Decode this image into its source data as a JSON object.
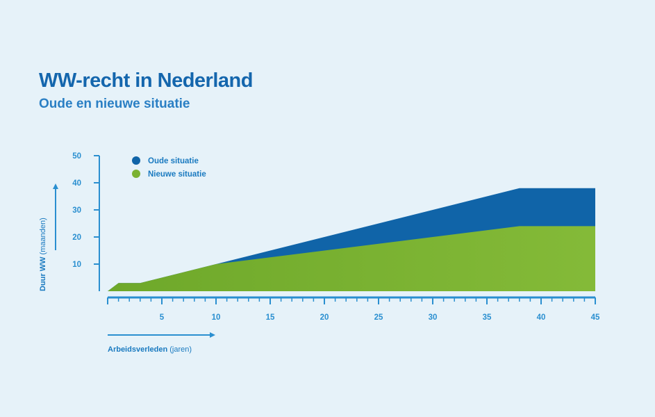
{
  "header": {
    "title": "WW-recht in Nederland",
    "subtitle": "Oude en nieuwe situatie"
  },
  "colors": {
    "background": "#e6f2f9",
    "title": "#1466ad",
    "oude": "#1064a8",
    "nieuwe_start": "#6ea82a",
    "nieuwe_end": "#84ba38",
    "axis": "#2a8fd0"
  },
  "chart_data": {
    "type": "area",
    "title": "WW-recht in Nederland",
    "subtitle": "Oude en nieuwe situatie",
    "xlabel_bold": "Arbeidsverleden",
    "xlabel_rest": " (jaren)",
    "ylabel_bold": "Duur WW",
    "ylabel_rest": " (maanden)",
    "xlim": [
      0,
      45
    ],
    "ylim": [
      0,
      50
    ],
    "x_ticks": [
      5,
      10,
      15,
      20,
      25,
      30,
      35,
      40,
      45
    ],
    "y_ticks": [
      10,
      20,
      30,
      40,
      50
    ],
    "legend_position": "top-left",
    "series": [
      {
        "name": "Oude situatie",
        "color": "#1064a8",
        "points": [
          [
            0,
            0
          ],
          [
            1,
            3
          ],
          [
            3,
            3
          ],
          [
            38,
            38
          ],
          [
            45,
            38
          ]
        ]
      },
      {
        "name": "Nieuwe situatie",
        "color": "#7bb232",
        "points": [
          [
            0,
            0
          ],
          [
            1,
            3
          ],
          [
            3,
            3
          ],
          [
            10,
            10
          ],
          [
            38,
            24
          ],
          [
            45,
            24
          ]
        ]
      }
    ]
  }
}
